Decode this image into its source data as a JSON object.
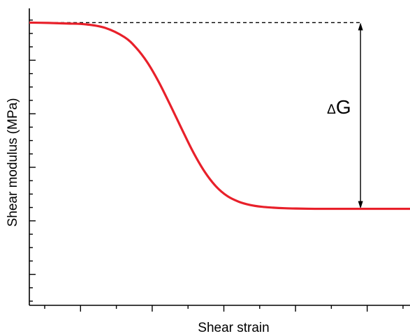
{
  "chart_data": {
    "type": "line",
    "title": "",
    "xlabel": "Shear strain",
    "ylabel": "Shear modulus (MPa)",
    "xlim": [
      0,
      100
    ],
    "ylim": [
      0,
      100
    ],
    "x_tick_labels": [],
    "y_tick_labels": [],
    "grid": false,
    "legend": "none",
    "series": [
      {
        "color": "#e8202a",
        "x": [
          0,
          5,
          10,
          15,
          20,
          25,
          28,
          31,
          34,
          37,
          40,
          43,
          46,
          49,
          52,
          55,
          58,
          61,
          64,
          67,
          70,
          75,
          80,
          85,
          90,
          95,
          100
        ],
        "y": [
          95.2,
          95.1,
          94.9,
          94.6,
          93.4,
          90.3,
          86.8,
          81.8,
          75.2,
          67.5,
          59.5,
          51.7,
          45.1,
          40.1,
          36.8,
          34.9,
          33.8,
          33.2,
          32.9,
          32.7,
          32.6,
          32.5,
          32.5,
          32.5,
          32.5,
          32.5,
          32.5
        ]
      }
    ],
    "annotations": {
      "delta_label": "ΔG",
      "reference_line": {
        "style": "dashed",
        "y": 95.2,
        "x_range": [
          0,
          87
        ]
      },
      "arrow": {
        "x": 87,
        "y_from": 95.2,
        "y_to": 32.5,
        "style": "double-headed"
      }
    }
  }
}
